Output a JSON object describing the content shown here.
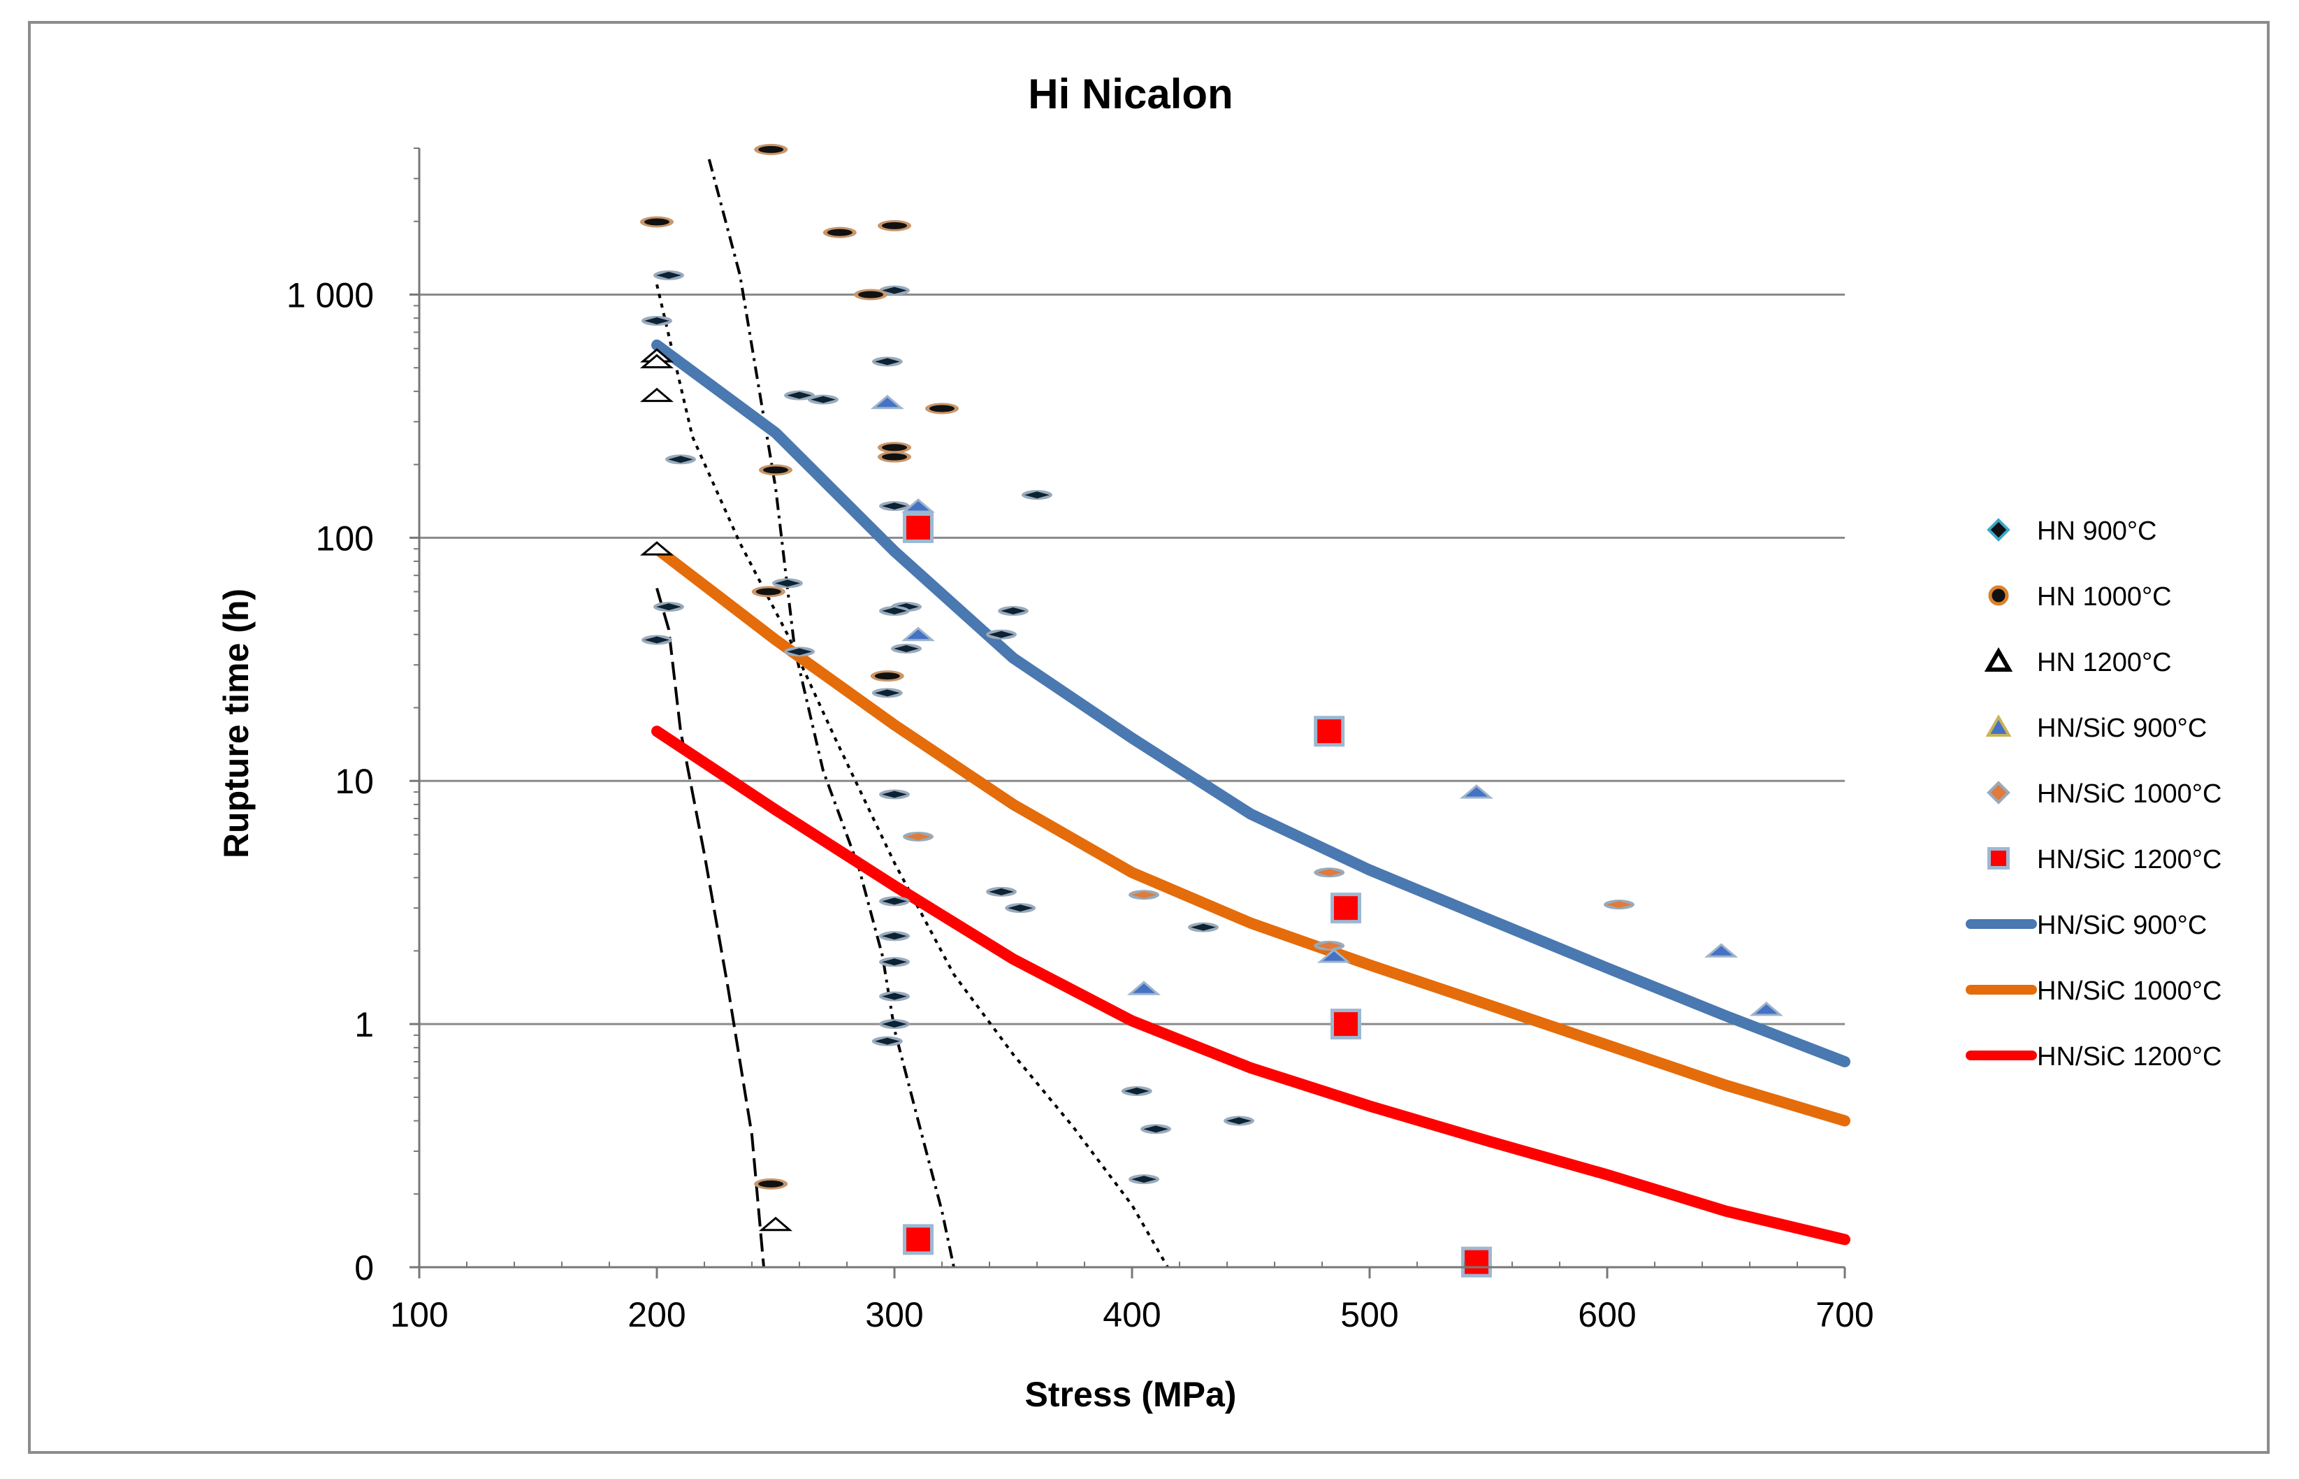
{
  "chart_data": {
    "type": "scatter",
    "title": "Hi Nicalon",
    "xlabel": "Stress (MPa)",
    "ylabel": "Rupture time (h)",
    "xlim": [
      100,
      700
    ],
    "x_ticks": [
      100,
      200,
      300,
      400,
      500,
      600,
      700
    ],
    "y_scale": "log",
    "y_ticks": [
      {
        "value": 0.1,
        "label": "0"
      },
      {
        "value": 1,
        "label": "1"
      },
      {
        "value": 10,
        "label": "10"
      },
      {
        "value": 100,
        "label": "100"
      },
      {
        "value": 1000,
        "label": "1 000"
      }
    ],
    "ylim": [
      0.1,
      4000
    ],
    "grid": "horizontal",
    "legend_position": "right",
    "series": [
      {
        "name": "HN 900°C",
        "kind": "points",
        "marker": "diamond",
        "color": "#0d2233",
        "points": [
          [
            205,
            1200
          ],
          [
            200,
            780
          ],
          [
            210,
            210
          ],
          [
            205,
            52
          ],
          [
            200,
            38
          ],
          [
            297,
            530
          ],
          [
            300,
            1040
          ],
          [
            305,
            52
          ],
          [
            300,
            50
          ],
          [
            300,
            135
          ],
          [
            305,
            35
          ],
          [
            297,
            23
          ],
          [
            300,
            8.8
          ],
          [
            300,
            3.2
          ],
          [
            300,
            2.3
          ],
          [
            300,
            1.8
          ],
          [
            300,
            1.3
          ],
          [
            300,
            1.0
          ],
          [
            297,
            0.85
          ],
          [
            345,
            3.5
          ],
          [
            345,
            40
          ],
          [
            350,
            50
          ],
          [
            360,
            150
          ],
          [
            353,
            3.0
          ],
          [
            430,
            2.5
          ],
          [
            402,
            0.53
          ],
          [
            410,
            0.37
          ],
          [
            405,
            0.23
          ],
          [
            445,
            0.4
          ],
          [
            255,
            65
          ],
          [
            260,
            34
          ],
          [
            260,
            385
          ],
          [
            270,
            370
          ]
        ]
      },
      {
        "name": "HN 1000°C",
        "kind": "points",
        "marker": "circle",
        "color": "#8b4513",
        "points": [
          [
            200,
            1990
          ],
          [
            248,
            3950
          ],
          [
            277,
            1800
          ],
          [
            300,
            1920
          ],
          [
            290,
            1000
          ],
          [
            300,
            235
          ],
          [
            300,
            215
          ],
          [
            320,
            340
          ],
          [
            250,
            190
          ],
          [
            247,
            60
          ],
          [
            297,
            27
          ],
          [
            248,
            0.22
          ]
        ]
      },
      {
        "name": "HN 1200°C",
        "kind": "points",
        "marker": "triangle",
        "color": "#000000",
        "points": [
          [
            200,
            560
          ],
          [
            200,
            530
          ],
          [
            200,
            385
          ],
          [
            200,
            90
          ],
          [
            250,
            0.15
          ]
        ]
      },
      {
        "name": "HN/SiC 900°C",
        "kind": "points",
        "marker": "triangle",
        "color": "#4472c4",
        "points": [
          [
            297,
            360
          ],
          [
            310,
            135
          ],
          [
            310,
            40
          ],
          [
            405,
            1.4
          ],
          [
            485,
            1.9
          ],
          [
            545,
            9.0
          ],
          [
            648,
            2.0
          ],
          [
            667,
            1.15
          ]
        ]
      },
      {
        "name": "HN/SiC 1000°C",
        "kind": "points",
        "marker": "diamond",
        "color": "#e07b39",
        "points": [
          [
            310,
            5.9
          ],
          [
            405,
            3.4
          ],
          [
            483,
            4.2
          ],
          [
            483,
            2.1
          ],
          [
            605,
            3.1
          ]
        ]
      },
      {
        "name": "HN/SiC 1200°C",
        "kind": "points",
        "marker": "square",
        "color": "#ff0000",
        "points": [
          [
            310,
            110
          ],
          [
            483,
            16
          ],
          [
            490,
            3.0
          ],
          [
            490,
            1.0
          ],
          [
            545,
            0.105
          ],
          [
            310,
            0.13
          ]
        ]
      },
      {
        "name": "HN/SiC 900°C",
        "kind": "line",
        "color": "#4a78b0",
        "points": [
          [
            200,
            620
          ],
          [
            250,
            270
          ],
          [
            300,
            88
          ],
          [
            350,
            32
          ],
          [
            400,
            15
          ],
          [
            450,
            7.3
          ],
          [
            500,
            4.3
          ],
          [
            550,
            2.7
          ],
          [
            600,
            1.7
          ],
          [
            650,
            1.08
          ],
          [
            700,
            0.7
          ]
        ]
      },
      {
        "name": "HN/SiC 1000°C",
        "kind": "line",
        "color": "#e46c0a",
        "points": [
          [
            200,
            90
          ],
          [
            250,
            38
          ],
          [
            300,
            17
          ],
          [
            350,
            8
          ],
          [
            400,
            4.2
          ],
          [
            450,
            2.6
          ],
          [
            500,
            1.75
          ],
          [
            550,
            1.2
          ],
          [
            600,
            0.82
          ],
          [
            650,
            0.56
          ],
          [
            700,
            0.4
          ]
        ]
      },
      {
        "name": "HN/SiC 1200°C",
        "kind": "line",
        "color": "#ff0000",
        "points": [
          [
            200,
            16
          ],
          [
            250,
            7.6
          ],
          [
            300,
            3.7
          ],
          [
            350,
            1.85
          ],
          [
            400,
            1.03
          ],
          [
            450,
            0.66
          ],
          [
            500,
            0.46
          ],
          [
            550,
            0.33
          ],
          [
            600,
            0.24
          ],
          [
            650,
            0.17
          ],
          [
            700,
            0.13
          ]
        ]
      }
    ],
    "band_lines": [
      {
        "style": "dashed",
        "points": [
          [
            200,
            62
          ],
          [
            205,
            42
          ],
          [
            210,
            16
          ],
          [
            220,
            5
          ],
          [
            230,
            1.4
          ],
          [
            240,
            0.35
          ],
          [
            245,
            0.1
          ]
        ]
      },
      {
        "style": "dotted",
        "points": [
          [
            200,
            1100
          ],
          [
            215,
            260
          ],
          [
            235,
            95
          ],
          [
            255,
            40
          ],
          [
            275,
            15
          ],
          [
            300,
            4.6
          ],
          [
            325,
            1.6
          ],
          [
            350,
            0.75
          ],
          [
            375,
            0.38
          ],
          [
            400,
            0.18
          ],
          [
            415,
            0.1
          ]
        ]
      },
      {
        "style": "dashdot",
        "points": [
          [
            222,
            3600
          ],
          [
            235,
            1200
          ],
          [
            250,
            160
          ],
          [
            258,
            35
          ],
          [
            270,
            11
          ],
          [
            285,
            4.4
          ],
          [
            295,
            1.9
          ],
          [
            300,
            0.95
          ],
          [
            310,
            0.4
          ],
          [
            320,
            0.17
          ],
          [
            325,
            0.1
          ]
        ]
      }
    ]
  }
}
